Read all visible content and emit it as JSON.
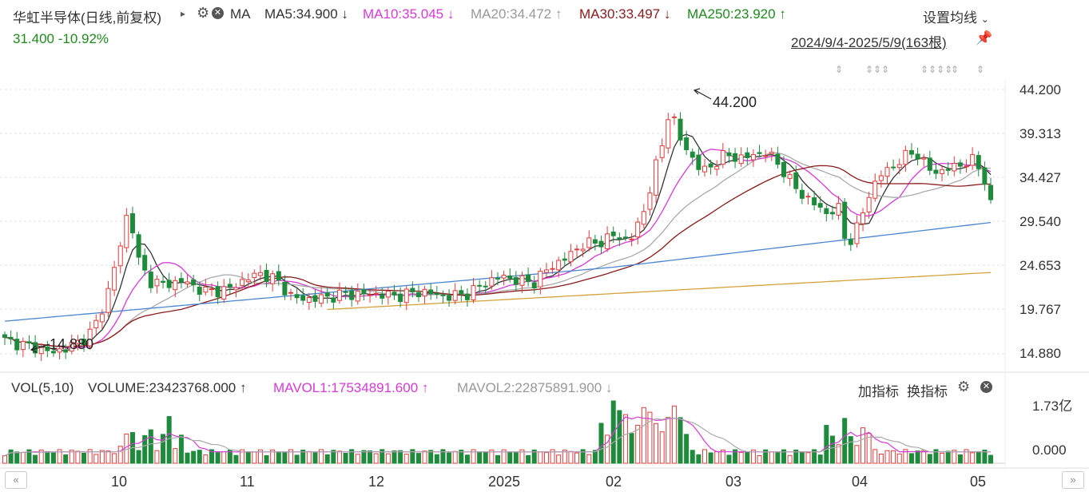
{
  "stock": {
    "title": "华虹半导体(日线,前复权)",
    "price": "31.400",
    "change_pct": "-10.92%"
  },
  "ma_bar": {
    "ma_label": "MA",
    "items": [
      {
        "text": "MA5:34.900",
        "arrow": "↓",
        "color": "#333333"
      },
      {
        "text": "MA10:35.045",
        "arrow": "↓",
        "color": "#d63ad6"
      },
      {
        "text": "MA20:34.472",
        "arrow": "↑",
        "color": "#999999"
      },
      {
        "text": "MA30:33.497",
        "arrow": "↓",
        "color": "#8b1a1a"
      },
      {
        "text": "MA250:23.920",
        "arrow": "↑",
        "color": "#1e8a1e"
      }
    ]
  },
  "settings_label": "设置均线",
  "date_range": "2024/9/4-2025/5/9(163根)",
  "y_axis": [
    "44.200",
    "39.313",
    "34.427",
    "29.540",
    "24.653",
    "19.767",
    "14.880"
  ],
  "annotations": {
    "high": "44.200",
    "low": "14.880"
  },
  "volume_bar": {
    "vol_label": "VOL(5,10)",
    "volume": "VOLUME:23423768.000",
    "volume_arrow": "↑",
    "mavol1": "MAVOL1:17534891.600",
    "mavol1_arrow": "↑",
    "mavol2": "MAVOL2:22875891.900",
    "mavol2_arrow": "↓",
    "add_indicator": "加指标",
    "switch_indicator": "换指标"
  },
  "vol_axis": [
    "1.73亿",
    "0.000"
  ],
  "x_axis": [
    "10",
    "11",
    "12",
    "2025",
    "02",
    "03",
    "04",
    "05"
  ],
  "colors": {
    "up": "#e23b3b",
    "down": "#1e8a3c",
    "ma5": "#333333",
    "ma10": "#d63ad6",
    "ma20": "#aaaaaa",
    "ma30": "#8b1a1a",
    "ma120": "#4a86d0",
    "ma250": "#d4a23a"
  }
}
